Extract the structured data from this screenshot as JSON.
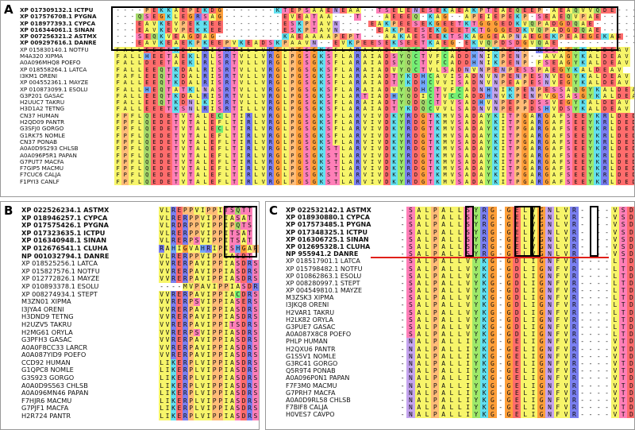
{
  "colors": {
    "A": "#f7f56a",
    "F": "#f7f56a",
    "I": "#f7f56a",
    "L": "#f7f56a",
    "M": "#f7f56a",
    "V": "#f7f56a",
    "W": "#f7f56a",
    "G": "#ff9f3a",
    "P": "#ffbc78",
    "S": "#ff7fb8",
    "T": "#ff7fb8",
    "C": "#74ee74",
    "N": "#c4a4ee",
    "Q": "#a6d86a",
    "E": "#ff6c6c",
    "D": "#ff6c6c",
    "K": "#62e0f0",
    "R": "#7a7ff0",
    "H": "#72a8ff",
    "Y": "#9ee96a",
    "-": "#ffffff",
    "gap": "#ffffff",
    "red_line": "#e0201a",
    "box": "#000000"
  },
  "panels": [
    {
      "id": "A",
      "label": "A",
      "names": [
        "XP 017309132.1 ICTPU",
        "XP 017576708.1 PYGNA",
        "XP 018977393.1 CYPCA",
        "XP 016344061.1 SINAN",
        "XP 007256321.2 ASTMX",
        "XP 009297616.1 DANRE",
        "XP 015830140.1 NOTFU",
        "M4A320 XIPMA",
        "A0A096MHQ8 POEFO",
        "XP 018558264.1 LATCA",
        "I3KM1 ORENI",
        "XP 004552361.1 MAYZE",
        "XP 010873099.1 ESOLU",
        "G3P201 GASAC",
        "H2UUC7 TAKRU",
        "H3D1A2 TETNG",
        "CN37 HUMAN",
        "H2QD09 PANTR",
        "G3SFJ0 GORGO",
        "G1RK75 NOMLE",
        "CN37 PONAB",
        "A0A0D9S293 CHLSB",
        "A0A096P5R1 PAPAN",
        "G7PUT7 MACFA",
        "F7GIP5 MACMU",
        "F7CUC6 CALJA",
        "F1PYI3 CANLF"
      ],
      "bold_rows": 6,
      "rows": [
        "----PEKKAEPEKDG-------KTEPSAAENEAA--TSELENESEKAEAKPTEAEQEEP-AEAQVVQDE---------------",
        "---QSEGKLEGRSAG--------EVEATAA---T---AEEEQ-KAG--APEIEPEKP-SEAEQVPAE----------------",
        "---EAVKEVPEKKEE--------ESKPTAVN----EAKPEESEKGEETKTGGGEDKVQPADGDQAE----------------",
        "---EAVKEVPEKKEE--------ESKPTAVN-----EAKPEESEKGEETKTGGGEDKVQPADGDQAE---------------",
        "---SEQKVEAGDAG---------KAEAAAAPEPT---AAKAESEEKTSKAGGEAPNAEGEKPEAEGEKAE------------",
        "---EAVKEAEKPKEEPVKEADSKPAAVN--EVKPEESEKSEETKAEG-EKVQPDSDGVQAE--------------------",
        "FALLEEETKDVLRISRTILLVRGLPGSGKSFLARAIADAYQCTVFCADDHNIKPENP-RSSAGYKALDEAV",
        "FALLHEETAEKLRLSRTVLLVRGLPGSGKSFLARAIADSYQCTVFCADDHNIKPENP--AVAGYKALDEAV",
        "FALLDEETAEKLRLSRTVLLVRGLPGSGKSFLARAIADSYQCTVFCADDHNIKPENP-FSEAGYKALDEAV",
        "FALLEEQTKDALRISRTVLLVRGLPGSGKSFLARAIADVYQCTVLSADNVNPENPESSPAEGYKALDEAV",
        "FAFLEEQTKDALRISRTVLLVRGLPGSGKSFLARAIADTYKDHCAVISADNVNPENPESNVEGYKALDEAV",
        "FALLEEQTKDALRISRTVLLVRGLPGSGKSFLARAIADTYKDHCVVISADNVNPEAPESNVEGYKALDEAV",
        "FALLHEQTATKLNASRTVLLVRGLPGSGKSFLARAIADVYQDHCTVFCADNHNIKPENPESSAQGYKALDEAV",
        "FALLEEQTKDALRISRTVLLVRGLPGSGKSFLARTIADHYQDICTVCCADDHNVKPENPVGSASGYKALDEAV",
        "FALLEEQTKDNLKISRTVLLVRGLPGSGKSFLARAIADTYQDQCTVVSADHVNPEPPDSSVEGYKALDEAV",
        "FALLEEETKSNLRISRTILLVRGLPGSGKSFLARAIADTYKDQCVVLSADNVNPEPPDSHVDSYKALDEAV",
        "FPFLQEDETVTALECLTIRLVRGLPGSGKSFLARVIVDKYRDGTKMVSADAYKITPGARGAFSEEYKRLDEDL",
        "FPFLQEDETVTALEFLTIRLVRGLPGSGKSFLARVIVDKYRDGTKMVSADAYKITPGARGAFSEEYKRLDEDL",
        "FPFLQEDETVTALECLTIRLVRGLPGSGKSFLARVIVDKYRDGTKMVSADAYKITPGARGAFSEEYKRLDEDL",
        "FPFLQEDETVTALEFLTIRLVRGLPGSGKSFLARVIVDKYRDGTKMVSADAYKITPGARGAFSEEYKRLDEDL",
        "FPFLQEDETVTALEFLTIRLVRGLPGSGKSFLARVIVDKYRDGTKMVSADAYKITPGARGAFSEEYKRLDEDL",
        "FPFLQEDETVTALEFLTIRLVRGLPGSGKSTLARVIVDKYRDGTKMVSADAYKITPGARGAFSEEYKRLDEDL",
        "FPFLQEDETVTALEFLTIRLVRGLPGSGKSTLARVIVDKYRDGTKMVSADAYKITPGARGAFSEEYKRLDEDL",
        "FPFLQEDETVTALEFLTIRLVRGLPGSGKSTLARVIVDKYRDGTKMVSADAYKITPGARGAFSEEYKRLDEDL",
        "FPFLQEDETVTALEFLTIRLVRGLPGSGKSTLARVIVDKYRDGTKMVSADAYKITPGARGAFSEEYKRLDEDL",
        "FPFLQEDETVTALEFLTIRLVRGLPGSGKSTLARVIVDKYRDGTKMVSADAYKITPGARGAFSEEYKRLDEDL",
        "FPFLQEDETVTALEFLTIRLVRGLPGSGKSTLARVIVDKYRDGTKMVSADAYKITPGARGAFSEEYKRLDEDL"
      ]
    },
    {
      "id": "B",
      "label": "B",
      "names": [
        "XP 022526234.1 ASTMX",
        "XP 018946257.1 CYPCA",
        "XP 017575426.1 PYGNA",
        "XP 017323635.1 ICTPU",
        "XP 016340948.1 SINAN",
        "XP 012676541.1 CLUHA",
        "NP 001032794.1 DANRE",
        "XP 018525256.1 LATCA",
        "XP 015827576.1 NOTFU",
        "XP 012772826.1 MAYZE",
        "XP 010893378.1 ESOLU",
        "XP 008274934.1 STEPT",
        "M3ZN01 XIPMA",
        "I3JYA4 ORENI",
        "H3DND9 TETNG",
        "H2UZV5 TAKRU",
        "H2MG61 ORYLA",
        "G3PFH3 GASAC",
        "A0A0F8CC33 LARCR",
        "A0A087YID9 POEFO",
        "CCD92 HUMAN",
        "G1QPC8 NOMLE",
        "G3S923 GORGO",
        "A0A0D9S563 CHLSB",
        "A0A096MN46 PAPAN",
        "F7HJR6 MACMU",
        "G7PJF1 MACFA",
        "H2R724 PANTR"
      ],
      "bold_rows": 7,
      "rows": [
        "VLREPPVIPPITSQTT",
        "VLRERPPVIPPIASAT",
        "VLRDRPPVIPPIPQTS",
        "VLRERPPVIPPITSAT",
        "VLRERPSVIPPITSAT",
        "RAHIGVAHRIPISHGAP",
        "VLRERPPVIPPIASDT",
        "VVRERPAVIPPIASDRS",
        "VVRERPAVIPPIASDRS",
        "VVRERPAVIPPIASDRS",
        "----MVPAVIPPIASDRS",
        "VVRERPAVIPPIACDRS",
        "VVRERPSVIPPIASERS",
        "VVRERPAVIPPIASDRS",
        "VVRERPAVIPPIASDRS",
        "VVRERPAVIPPITSDRS",
        "VVRERPSVIPPIASDRS",
        "VVRERPAVIPPIASDRS",
        "VVRERPAVIPPIASDRS",
        "VVRERPAVIPPIASDRS",
        "LIKERPLVIPPIASDRS",
        "LIKERPLVIPPIASDRS",
        "LIKERPLVIPPIASDRS",
        "LIKERPLVIPPIASDRS",
        "LIKERPLVIPPIASDRS",
        "LIKERPLVIPPIASDRS",
        "LIKERPLVIPPIASDRS",
        "LIKERPLVIPPIASDRS"
      ]
    },
    {
      "id": "C",
      "label": "C",
      "names": [
        "XP 022532142.1 ASTMX",
        "XP 018930880.1 CYPCA",
        "XP 017573485.1 PYGNA",
        "XP 017348325.1 ICTPU",
        "XP 016306725.1 SINAN",
        "XP 012695328.1 CLUHA",
        "NP 955941.2 DANRE",
        "XP 018517901.1 LATCA",
        "XP 015798482.1 NOTFU",
        "XP 010862863.1 ESOLU",
        "XP 008280997.1 STEPT",
        "XP 004549810.1 MAYZE",
        "M3ZSK3 XIPMA",
        "I3JKQ8 ORENI",
        "H2VAR1 TAKRU",
        "H2LK82 ORYLA",
        "G3PUE7 GASAC",
        "A0A087X8C8 POEFO",
        "PHLP HUMAN",
        "H2QXU6 PANTR",
        "G1S5V1 NOMLE",
        "G3RC41 GORGO",
        "Q5R9T4 PONAB",
        "A0A096P0N1 PAPAN",
        "F7F3M0 MACMU",
        "G7PRH7 MACFA",
        "A0A0D9RL58 CHLSB",
        "F7BIF8 CALJA",
        "H0VES7 CAVPO"
      ],
      "bold_rows": 7,
      "rows": [
        "-SALPALLSYRG-GELVGNLVR----VSDQLG",
        "-SALPALLSYRG-GELVGNLVR----VSDQLG",
        "-SALPALLSYRG-GELVGNLVR----VSDQLG",
        "-SALPALLSYRG-GELVGNLVR----VSDQLG",
        "-SALPALLSYRG-GELVGNLVR----VSDQLG",
        "-SALPALLSYRG-GELVGNLVR----VSDQLG",
        "-SALPALLSYRG-GELVGNLVR----VSDQLG",
        "-SALPALLVYKG-GDLIGNFVR----LTDQLG",
        "-SALPALLVYKG-GDLIGNFVR----LTDQLG",
        "-SALPALLVYKG-GDLIGNFVR----LTDQLG",
        "-SALPALLVYKG-GDLIGNFVR----LTDQLG",
        "-SALPALLVYKG-GDLIGNFVR----LTDQLG",
        "-SALPALLVYKG-GDLIGNFVR----LTDQLG",
        "-SALPALLVYKG-GDLIGNFVR----LTDQLG",
        "-SALPALLVYKG-GDLIGNFVR----LTDQLG",
        "-SALPALLVYKG-GDLIGNFVR----LTDQLG",
        "-SALPALLVYKG-GDLIGNFVR----LTDQLG",
        "-SALPALLVYKG-GDLIGNFVR----LTDQLG",
        "-NALPALLIYKG-GELIGNFVR----VTDQLG",
        "-NALPALLIYKG-GELIGNFVR----VTDQLG",
        "-NALPALLIYKG-GELIGNFVR----VTDQLG",
        "-NALPALLIYKG-GELIGNFVR----VTDQLG",
        "-NALPALLIYKG-GELIGNFVR----VTDQLG",
        "-NALPALLIYKG-GELIGNFVR----VTDQLG",
        "-NALPALLIYKG-GELIGNFVR----VTDQLG",
        "-NALPALLIYKG-GELIGNFVR----VTDQLG",
        "-NALPALLIYKG-GELIGNFVR----VTDQLG",
        "-NALPALLIYKG-GELIGNFVR----VTDQLG",
        "-NALPALLIYKG-GELIGNFVR----VTDQLG"
      ]
    }
  ]
}
